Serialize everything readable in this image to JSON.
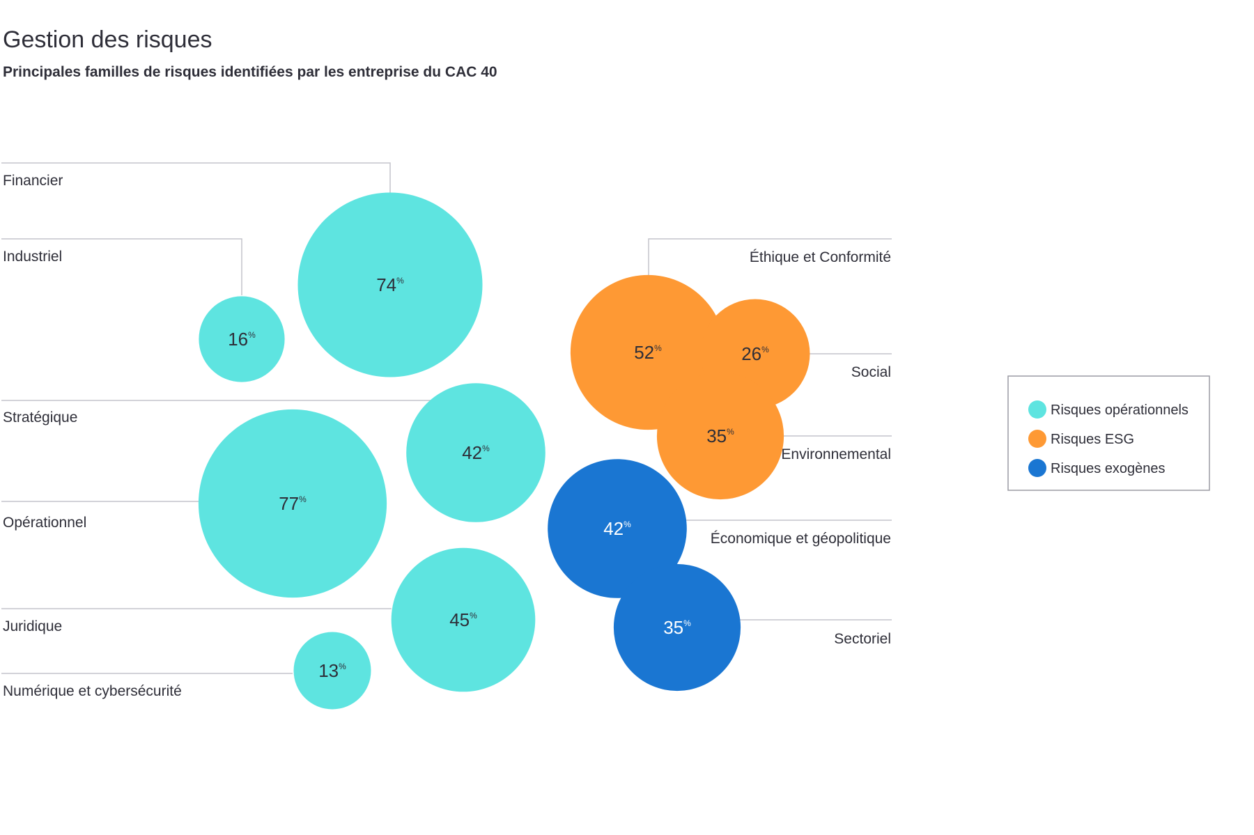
{
  "chart_data": {
    "type": "bubble",
    "title": "Gestion des risques",
    "subtitle": "Principales familles de risques identifiées par les entreprise du CAC 40",
    "unit": "%",
    "groups": [
      {
        "name": "Risques opérationnels",
        "color": "#5ee4e0"
      },
      {
        "name": "Risques ESG",
        "color": "#fe9934"
      },
      {
        "name": "Risques exogènes",
        "color": "#1a76d2"
      }
    ],
    "series": [
      {
        "label": "Financier",
        "value": 74,
        "group": "Risques opérationnels"
      },
      {
        "label": "Industriel",
        "value": 16,
        "group": "Risques opérationnels"
      },
      {
        "label": "Stratégique",
        "value": 42,
        "group": "Risques opérationnels"
      },
      {
        "label": "Opérationnel",
        "value": 77,
        "group": "Risques opérationnels"
      },
      {
        "label": "Juridique",
        "value": 45,
        "group": "Risques opérationnels"
      },
      {
        "label": "Numérique et cybersécurité",
        "value": 13,
        "group": "Risques opérationnels"
      },
      {
        "label": "Éthique et Conformité",
        "value": 52,
        "group": "Risques ESG"
      },
      {
        "label": "Social",
        "value": 26,
        "group": "Risques ESG"
      },
      {
        "label": "Environnemental",
        "value": 35,
        "group": "Risques ESG"
      },
      {
        "label": "Économique et géopolitique",
        "value": 42,
        "group": "Risques exogènes"
      },
      {
        "label": "Sectoriel",
        "value": 35,
        "group": "Risques exogènes"
      }
    ]
  }
}
